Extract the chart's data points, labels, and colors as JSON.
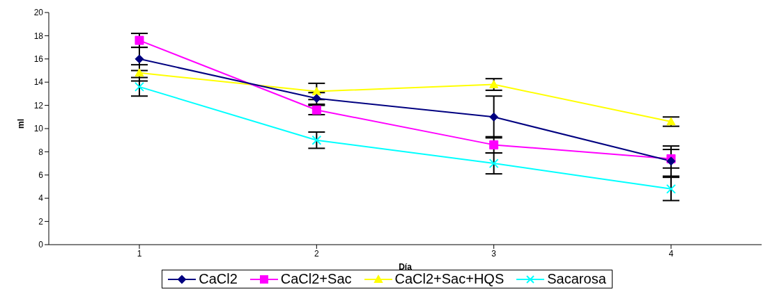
{
  "chart_data": {
    "type": "line",
    "xlabel": "Día",
    "ylabel": "ml",
    "categories": [
      "1",
      "2",
      "3",
      "4"
    ],
    "ylim": [
      0,
      20
    ],
    "yticks": [
      0,
      2,
      4,
      6,
      8,
      10,
      12,
      14,
      16,
      18,
      20
    ],
    "grid": false,
    "legend": "bottom",
    "series": [
      {
        "name": "CaCl2",
        "color": "#000080",
        "marker": "diamond",
        "values": [
          16,
          12.6,
          11,
          7.2
        ],
        "errors": [
          1,
          0.5,
          1.8,
          1.3
        ]
      },
      {
        "name": "CaCl2+Sac",
        "color": "#ff00ff",
        "marker": "square",
        "values": [
          17.6,
          11.6,
          8.6,
          7.4
        ],
        "errors": [
          0.6,
          0.4,
          0.7,
          0.8
        ]
      },
      {
        "name": "CaCl2+Sac+HQS",
        "color": "#ffff00",
        "marker": "triangle",
        "values": [
          14.8,
          13.2,
          13.8,
          10.6
        ],
        "errors": [
          0.7,
          0.7,
          0.5,
          0.4
        ]
      },
      {
        "name": "Sacarosa",
        "color": "#00ffff",
        "marker": "cross",
        "values": [
          13.6,
          9,
          7,
          4.8
        ],
        "errors": [
          0.8,
          0.7,
          0.9,
          1
        ]
      }
    ]
  }
}
